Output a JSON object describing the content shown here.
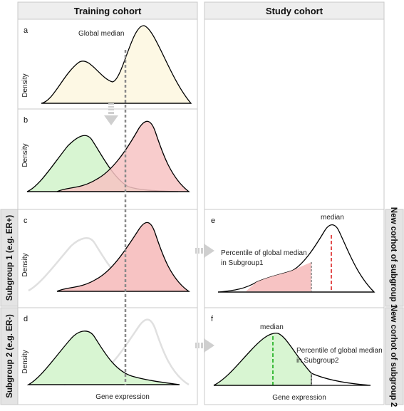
{
  "headers": {
    "training": "Training cohort",
    "study": "Study cohort"
  },
  "side_labels": {
    "left_subgroup1": "Subgroup 1 (e.g. ER+)",
    "left_subgroup2": "Subgroup 2 (e.g. ER-)",
    "right_subgroup1": "New corhot of subgroup 1",
    "right_subgroup2": "New corhot of subgroup 2"
  },
  "panels": {
    "a": {
      "letter": "a",
      "ylabel": "Density",
      "note": "Global median"
    },
    "b": {
      "letter": "b",
      "ylabel": "Density"
    },
    "c": {
      "letter": "c",
      "ylabel": "Density"
    },
    "d": {
      "letter": "d",
      "ylabel": "Density",
      "xlabel": "Gene expression"
    },
    "e": {
      "letter": "e",
      "median_label": "median",
      "percentile_line1": "Percentile of global median",
      "percentile_line2": "in Subgroup1"
    },
    "f": {
      "letter": "f",
      "median_label": "median",
      "xlabel": "Gene expression",
      "percentile_line1": "Percentile of global median",
      "percentile_line2": "in Subgroup2"
    }
  },
  "colors": {
    "yellow_fill": "#fdf8e4",
    "green_fill": "#d8f5d2",
    "red_fill": "#f7c3c3",
    "overlap_fill": "#d9a48f",
    "grey_curve": "#e0e0e0",
    "arrow": "#cfcfcf",
    "panel_border": "#c8c8c8",
    "header_bg": "#eeeeee",
    "side_bg": "#e4e4e4",
    "median_line": "#8a8a8a",
    "red_dash": "#e03b3b",
    "green_dash": "#2bb52b"
  }
}
